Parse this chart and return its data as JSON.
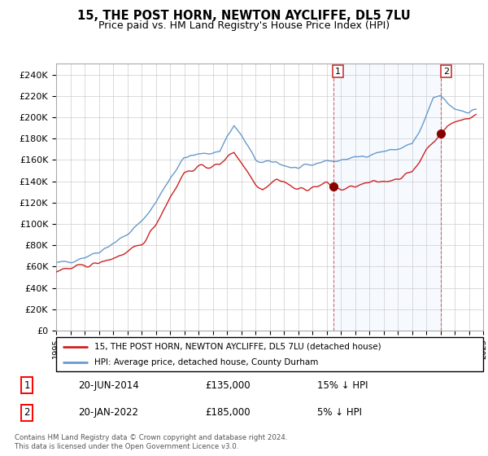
{
  "title": "15, THE POST HORN, NEWTON AYCLIFFE, DL5 7LU",
  "subtitle": "Price paid vs. HM Land Registry's House Price Index (HPI)",
  "legend_line1": "15, THE POST HORN, NEWTON AYCLIFFE, DL5 7LU (detached house)",
  "legend_line2": "HPI: Average price, detached house, County Durham",
  "footnote": "Contains HM Land Registry data © Crown copyright and database right 2024.\nThis data is licensed under the Open Government Licence v3.0.",
  "sale1_date": "20-JUN-2014",
  "sale1_price": "£135,000",
  "sale1_hpi": "15% ↓ HPI",
  "sale2_date": "20-JAN-2022",
  "sale2_price": "£185,000",
  "sale2_hpi": "5% ↓ HPI",
  "hpi_color": "#6699cc",
  "price_color": "#cc2222",
  "marker_color": "#880000",
  "vline_color": "#cc4444",
  "fill_color": "#ddeeff",
  "ylim": [
    0,
    250000
  ],
  "yticks": [
    0,
    20000,
    40000,
    60000,
    80000,
    100000,
    120000,
    140000,
    160000,
    180000,
    200000,
    220000,
    240000
  ],
  "ytick_labels": [
    "£0",
    "£20K",
    "£40K",
    "£60K",
    "£80K",
    "£100K",
    "£120K",
    "£140K",
    "£160K",
    "£180K",
    "£200K",
    "£220K",
    "£240K"
  ],
  "sale1_x": 2014.46,
  "sale1_y": 135000,
  "sale2_x": 2022.05,
  "sale2_y": 185000,
  "xmin": 1995,
  "xmax": 2025,
  "figwidth": 6.0,
  "figheight": 5.6,
  "dpi": 100
}
